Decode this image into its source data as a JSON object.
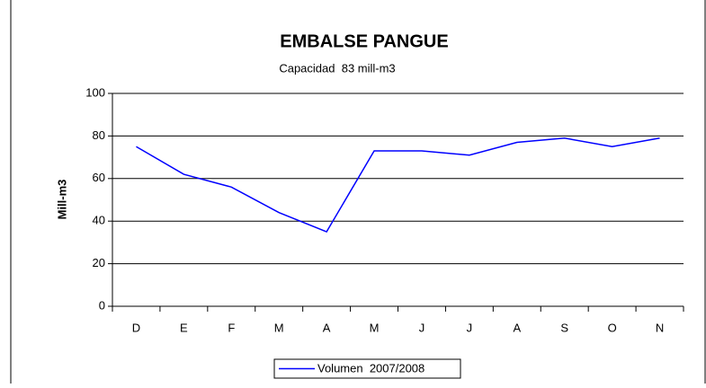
{
  "chart_data": {
    "type": "line",
    "title": "EMBALSE PANGUE",
    "subtitle": "Capacidad  83 mill-m3",
    "y_label": "Mill-m3",
    "categories": [
      "D",
      "E",
      "F",
      "M",
      "A",
      "M",
      "J",
      "J",
      "A",
      "S",
      "O",
      "N"
    ],
    "series": [
      {
        "name": "Volumen  2007/2008",
        "color": "#0000ff",
        "values": [
          75,
          62,
          56,
          44,
          35,
          73,
          73,
          71,
          77,
          79,
          75,
          79
        ]
      }
    ],
    "ylim": [
      0,
      100
    ],
    "yticks": [
      0,
      20,
      40,
      60,
      80,
      100
    ],
    "grid": true,
    "legend": "bottom"
  }
}
